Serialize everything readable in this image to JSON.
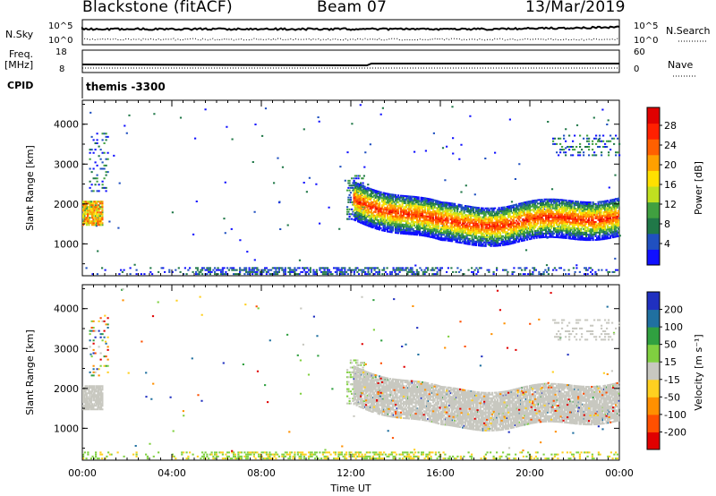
{
  "header": {
    "title": "Blackstone (fitACF)",
    "beam": "Beam 07",
    "date": "13/Mar/2019"
  },
  "params": {
    "nsky_label": "N.Sky",
    "nsky_ticks": [
      "10^5",
      "10^0"
    ],
    "nsearch_label": "N.Search",
    "freq_label": "Freq.",
    "freq_unit": "[MHz]",
    "freq_ticks": [
      "18",
      "8"
    ],
    "nave_label": "Nave",
    "nave_ticks": [
      "60",
      "0"
    ],
    "cpid_label": "CPID",
    "cpid_value": "themis -3300"
  },
  "chart_data": [
    {
      "type": "heatmap",
      "name": "power-panel",
      "ylabel": "Slant Range [km]",
      "ylim": [
        200,
        4600
      ],
      "yticks": [
        1000,
        2000,
        3000,
        4000
      ],
      "colorbar": {
        "label": "Power [dB]",
        "ticks": [
          "4",
          "8",
          "12",
          "16",
          "20",
          "24",
          "28"
        ],
        "colors": [
          "#1010ff",
          "#2050c0",
          "#207848",
          "#40a040",
          "#c0e020",
          "#ffe000",
          "#ffa000",
          "#ff6000",
          "#ff2000",
          "#e00000"
        ]
      }
    },
    {
      "type": "heatmap",
      "name": "velocity-panel",
      "ylabel": "Slant Range [km]",
      "ylim": [
        200,
        4600
      ],
      "yticks": [
        1000,
        2000,
        3000,
        4000
      ],
      "xlabel": "Time UT",
      "xticks": [
        "00:00",
        "04:00",
        "08:00",
        "12:00",
        "16:00",
        "20:00",
        "00:00"
      ],
      "colorbar": {
        "label": "Velocity [m s^-1]",
        "ticks": [
          "200",
          "100",
          "50",
          "15",
          "-15",
          "-50",
          "-100",
          "-200"
        ],
        "colors": [
          "#2030c0",
          "#2070a0",
          "#30a040",
          "#80d040",
          "#c8c8c0",
          "#ffd020",
          "#ff9000",
          "#ff5000",
          "#e00000"
        ]
      }
    }
  ]
}
